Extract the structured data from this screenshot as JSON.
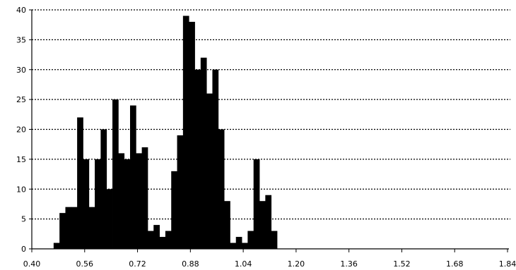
{
  "chart_data": {
    "type": "bar",
    "title": "",
    "xlabel": "",
    "ylabel": "",
    "bin_width": 0.0178,
    "x_start": 0.466,
    "xlim": [
      0.4,
      1.84
    ],
    "ylim": [
      0,
      40
    ],
    "x_ticks": [
      "0.40",
      "0.56",
      "0.72",
      "0.88",
      "1.04",
      "1.20",
      "1.36",
      "1.52",
      "1.68",
      "1.84"
    ],
    "y_ticks": [
      "0",
      "5",
      "10",
      "15",
      "20",
      "25",
      "30",
      "35",
      "40"
    ],
    "values": [
      1,
      6,
      7,
      7,
      22,
      15,
      7,
      15,
      20,
      10,
      25,
      16,
      15,
      24,
      16,
      17,
      3,
      4,
      2,
      3,
      13,
      19,
      39,
      38,
      30,
      32,
      26,
      30,
      20,
      8,
      1,
      2,
      1,
      3,
      15,
      8,
      9,
      3
    ],
    "grid": "horizontal dotted",
    "bar_color": "#000000",
    "grid_color": "#000000"
  }
}
